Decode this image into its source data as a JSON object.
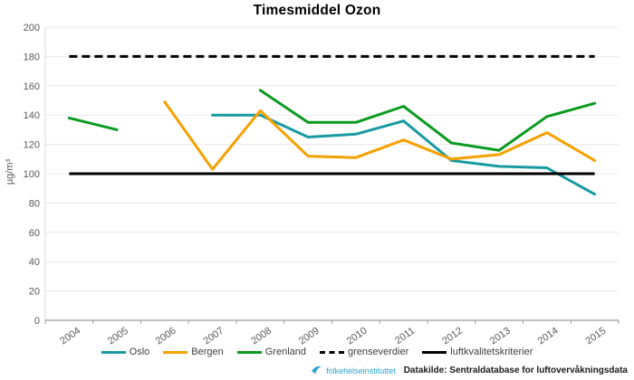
{
  "chart_data": {
    "type": "line",
    "title": "Timesmiddel Ozon",
    "ylabel": "µg/m³",
    "ylim": [
      0,
      200
    ],
    "ytick_step": 20,
    "grid": true,
    "legend_position": "bottom",
    "categories": [
      "2004",
      "2005",
      "2006",
      "2007",
      "2008",
      "2009",
      "2010",
      "2011",
      "2012",
      "2013",
      "2014",
      "2015"
    ],
    "series": [
      {
        "name": "Oslo",
        "color": "#189aa2",
        "style": "solid",
        "values": [
          null,
          null,
          null,
          140,
          140,
          125,
          127,
          136,
          109,
          105,
          104,
          86
        ]
      },
      {
        "name": "Bergen",
        "color": "#f4a100",
        "style": "solid",
        "values": [
          null,
          null,
          149,
          103,
          143,
          112,
          111,
          123,
          110,
          113,
          128,
          109
        ]
      },
      {
        "name": "Grenland",
        "color": "#0a9b20",
        "style": "solid",
        "values": [
          138,
          130,
          null,
          null,
          157,
          135,
          135,
          146,
          121,
          116,
          139,
          148
        ]
      },
      {
        "name": "grenseverdier",
        "color": "#000000",
        "style": "dashed",
        "constant": 180
      },
      {
        "name": "luftkvalitetskriterier",
        "color": "#000000",
        "style": "solid",
        "constant": 100
      }
    ]
  },
  "footer": {
    "logo_text": "folkehelseinstituttet",
    "datasource": "Datakilde: Sentraldatabase for luftovervåkningsdata"
  },
  "colors": {
    "grid": "#e8e8e8",
    "axis_left": "#d9d9d9",
    "axis_bottom": "#9a9a9a",
    "tick_text": "#595959",
    "logo_blue": "#2ba3d4"
  }
}
